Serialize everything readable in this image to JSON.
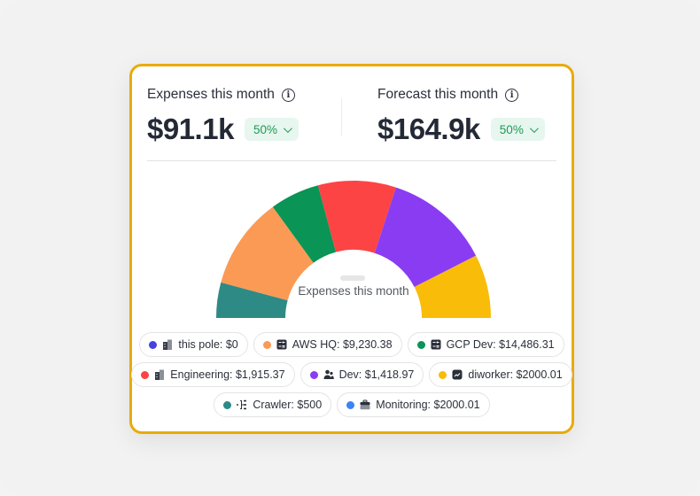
{
  "expenses": {
    "label": "Expenses this month",
    "value": "$91.1k",
    "badge": "50%"
  },
  "forecast": {
    "label": "Forecast this month",
    "value": "$164.9k",
    "badge": "50%"
  },
  "gauge": {
    "center_label": "Expenses this month",
    "segments": [
      {
        "name": "teal",
        "color": "#2e8a85",
        "start": 180,
        "end": 165
      },
      {
        "name": "orange",
        "color": "#fb9a55",
        "start": 165,
        "end": 126
      },
      {
        "name": "green",
        "color": "#0a9455",
        "start": 126,
        "end": 105
      },
      {
        "name": "red",
        "color": "#fd4444",
        "start": 105,
        "end": 72
      },
      {
        "name": "purple",
        "color": "#8a3cf2",
        "start": 72,
        "end": 27
      },
      {
        "name": "yellow",
        "color": "#f9bc08",
        "start": 27,
        "end": 0
      }
    ]
  },
  "legend": {
    "rows": [
      [
        {
          "label": "this pole: $0",
          "color": "#4940df",
          "icon": "building-icon"
        },
        {
          "label": "AWS HQ: $9,230.38",
          "color": "#fb9a55",
          "icon": "calculator-icon"
        },
        {
          "label": "GCP Dev: $14,486.31",
          "color": "#0a9455",
          "icon": "calculator-icon"
        }
      ],
      [
        {
          "label": "Engineering: $1,915.37",
          "color": "#fd4444",
          "icon": "building-icon"
        },
        {
          "label": "Dev: $1,418.97",
          "color": "#8a3cf2",
          "icon": "users-icon"
        },
        {
          "label": "diworker: $2000.01",
          "color": "#f9bc08",
          "icon": "chart-icon"
        }
      ],
      [
        {
          "label": "Crawler: $500",
          "color": "#2e8a85",
          "icon": "hierarchy-icon"
        },
        {
          "label": "Monitoring: $2000.01",
          "color": "#3b82f6",
          "icon": "briefcase-icon"
        }
      ]
    ]
  }
}
